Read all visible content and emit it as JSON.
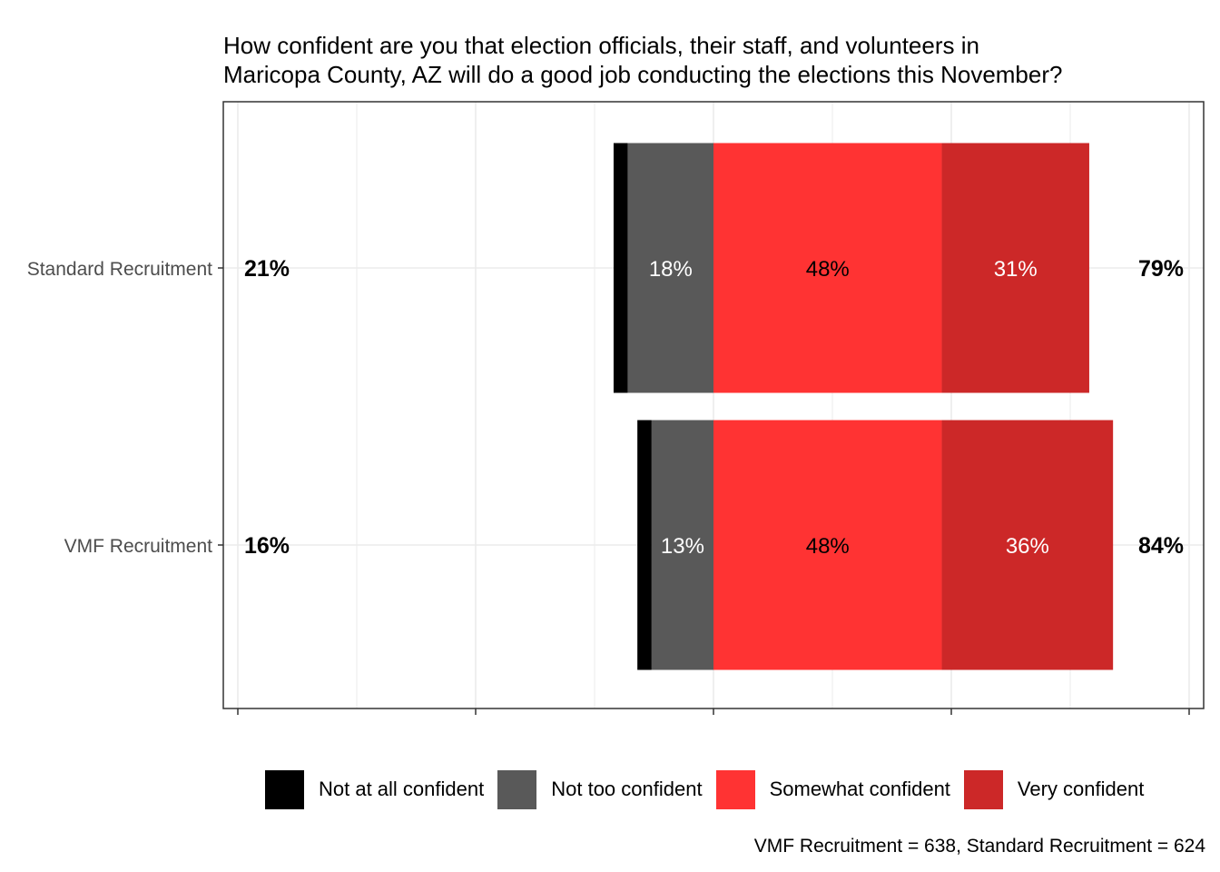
{
  "title_lines": [
    "How confident are you that election officials, their staff, and volunteers in",
    "Maricopa County, AZ will do a good job conducting the elections this November?"
  ],
  "caption": "VMF Recruitment = 638, Standard Recruitment = 624",
  "colors": {
    "not_at_all": "#000000",
    "not_too": "#595959",
    "somewhat": "#ff3333",
    "very": "#cc2828",
    "grid": "#ebebeb",
    "panel_border": "#333333"
  },
  "chart_data": {
    "type": "bar",
    "orientation": "horizontal",
    "stacked": "diverging",
    "xlim": [
      -1.0,
      1.0
    ],
    "x_tick_labels": [
      "",
      "",
      "",
      "",
      ""
    ],
    "grid": true,
    "legend_position": "bottom",
    "categories": [
      "Standard Recruitment",
      "VMF Recruitment"
    ],
    "series": [
      {
        "name": "Not at all confident",
        "values": [
          3,
          3
        ],
        "labels": [
          "",
          ""
        ],
        "label_color": "#ffffff"
      },
      {
        "name": "Not too confident",
        "values": [
          18,
          13
        ],
        "labels": [
          "18%",
          "13%"
        ],
        "label_color": "#ffffff"
      },
      {
        "name": "Somewhat confident",
        "values": [
          48,
          48
        ],
        "labels": [
          "48%",
          "48%"
        ],
        "label_color": "#000000"
      },
      {
        "name": "Very confident",
        "values": [
          31,
          36
        ],
        "labels": [
          "31%",
          "36%"
        ],
        "label_color": "#ffffff"
      }
    ],
    "negative_totals": [
      "21%",
      "16%"
    ],
    "positive_totals": [
      "79%",
      "84%"
    ]
  }
}
